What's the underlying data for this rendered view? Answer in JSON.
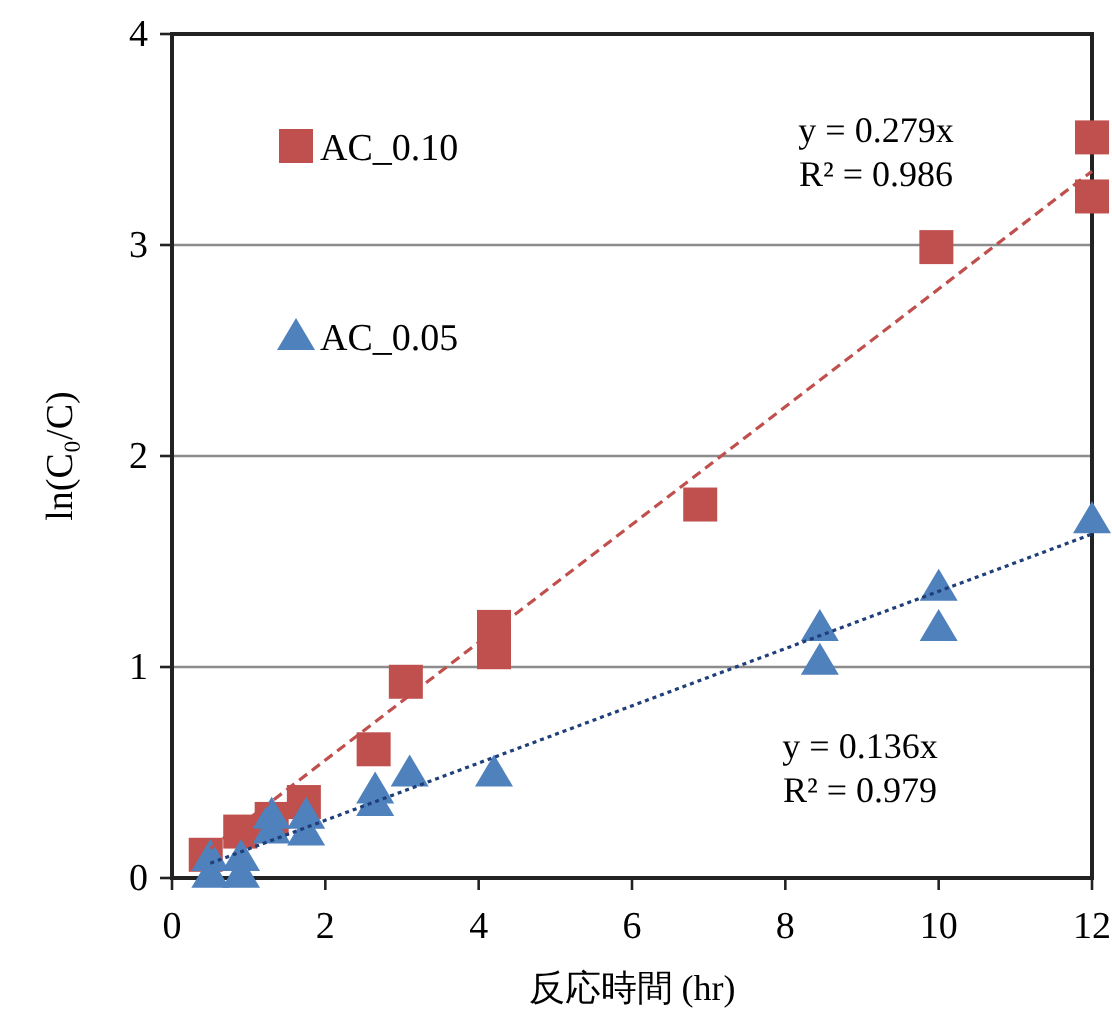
{
  "chart_data": {
    "type": "scatter",
    "xlabel": "反応時間 (hr)",
    "ylabel": "ln(C₀/C)",
    "xlim": [
      0,
      12
    ],
    "xticks": [
      0,
      2,
      4,
      6,
      8,
      10,
      12
    ],
    "ylim": [
      0,
      4
    ],
    "yticks": [
      0,
      1,
      2,
      3,
      4
    ],
    "grid": "y",
    "legend": "top left",
    "series": [
      {
        "name": "AC_0.10",
        "color": "#c0504d",
        "marker": "square",
        "x": [
          0.44,
          0.89,
          1.3,
          1.72,
          2.63,
          3.05,
          4.2,
          4.2,
          6.89,
          9.97,
          12,
          12
        ],
        "values": [
          0.11,
          0.22,
          0.28,
          0.36,
          0.61,
          0.93,
          1.19,
          1.07,
          1.77,
          2.99,
          3.51,
          3.23
        ]
      },
      {
        "name": "AC_0.05",
        "color": "#4f81bd",
        "marker": "triangle",
        "x": [
          0.5,
          0.5,
          0.9,
          0.9,
          1.3,
          1.3,
          1.75,
          1.75,
          2.65,
          2.65,
          3.1,
          4.2,
          8.45,
          8.45,
          10,
          10,
          12
        ],
        "values": [
          0.1,
          0.02,
          0.1,
          0.02,
          0.3,
          0.23,
          0.3,
          0.22,
          0.42,
          0.36,
          0.5,
          0.5,
          1.19,
          1.03,
          1.38,
          1.19,
          1.7
        ]
      },
      {
        "type": "line",
        "color": "#c0504d",
        "line_style": "dashed",
        "marker": "none",
        "x": [
          0.5,
          12
        ],
        "values": [
          0.14,
          3.35
        ]
      },
      {
        "type": "line",
        "color": "#1f3f7a",
        "line_style": "dotted",
        "marker": "none",
        "x": [
          0.5,
          12
        ],
        "values": [
          0.07,
          1.63
        ]
      }
    ],
    "annotations": [
      "y = 0.279x\nR² = 0.986",
      "y = 0.136x\nR² = 0.979"
    ]
  }
}
